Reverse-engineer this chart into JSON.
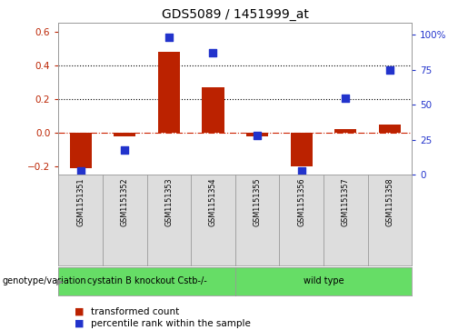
{
  "title": "GDS5089 / 1451999_at",
  "samples": [
    "GSM1151351",
    "GSM1151352",
    "GSM1151353",
    "GSM1151354",
    "GSM1151355",
    "GSM1151356",
    "GSM1151357",
    "GSM1151358"
  ],
  "transformed_count": [
    -0.21,
    -0.02,
    0.48,
    0.27,
    -0.02,
    -0.2,
    0.02,
    0.05
  ],
  "percentile_rank": [
    3,
    18,
    98,
    87,
    28,
    3,
    55,
    75
  ],
  "bar_color": "#bb2200",
  "dot_color": "#2233cc",
  "ylim_left": [
    -0.25,
    0.65
  ],
  "ylim_right": [
    0,
    108.33
  ],
  "yticks_left": [
    -0.2,
    0.0,
    0.2,
    0.4,
    0.6
  ],
  "yticks_right": [
    0,
    25,
    50,
    75,
    100
  ],
  "group1_label": "cystatin B knockout Cstb-/-",
  "group2_label": "wild type",
  "group1_color": "#66dd66",
  "group2_color": "#66dd66",
  "genotype_label": "genotype/variation",
  "legend_bar_label": "transformed count",
  "legend_dot_label": "percentile rank within the sample",
  "sample_box_color": "#dddddd",
  "plot_bg_color": "#ffffff",
  "hline_color": "#cc2200",
  "dotted_line_color": "#000000",
  "bar_width": 0.5,
  "dot_size": 35,
  "n_group1": 4,
  "n_group2": 4
}
